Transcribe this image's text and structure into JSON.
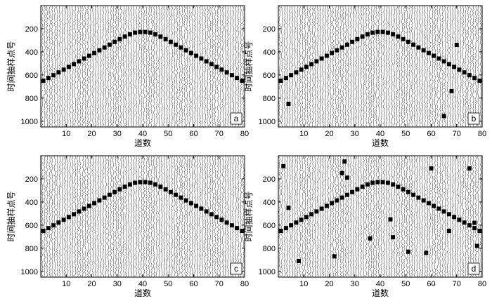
{
  "chart_data": [
    {
      "type": "scatter",
      "panel_label": "a",
      "xlabel": "道数",
      "ylabel": "时间抽样点号",
      "xlim": [
        0,
        80
      ],
      "ylim": [
        1050,
        0
      ],
      "xticks": [
        "10",
        "20",
        "30",
        "40",
        "50",
        "60",
        "70",
        "80"
      ],
      "yticks": [
        "200",
        "400",
        "600",
        "800",
        "1000"
      ],
      "background": "seismic wiggle traces",
      "picks": {
        "x": [
          1,
          3,
          5,
          7,
          9,
          11,
          13,
          15,
          17,
          19,
          21,
          23,
          25,
          27,
          29,
          31,
          33,
          35,
          37,
          39,
          41,
          43,
          45,
          47,
          49,
          51,
          53,
          55,
          57,
          59,
          61,
          63,
          65,
          67,
          69,
          71,
          73,
          75,
          77,
          79
        ],
        "y": [
          650,
          626,
          602,
          578,
          554,
          530,
          506,
          482,
          458,
          434,
          410,
          386,
          362,
          338,
          314,
          290,
          268,
          248,
          234,
          228,
          228,
          234,
          248,
          268,
          290,
          314,
          338,
          362,
          386,
          410,
          434,
          458,
          482,
          506,
          530,
          554,
          578,
          602,
          626,
          650
        ]
      },
      "outliers": {
        "x": [],
        "y": []
      }
    },
    {
      "type": "scatter",
      "panel_label": "b",
      "xlabel": "道数",
      "ylabel": "时间抽样点号",
      "xlim": [
        0,
        80
      ],
      "ylim": [
        1050,
        0
      ],
      "xticks": [
        "10",
        "20",
        "30",
        "40",
        "50",
        "60",
        "70",
        "80"
      ],
      "yticks": [
        "200",
        "400",
        "600",
        "800",
        "1000"
      ],
      "background": "seismic wiggle traces",
      "picks": {
        "x": [
          1,
          3,
          5,
          7,
          9,
          11,
          13,
          15,
          17,
          19,
          21,
          23,
          25,
          27,
          29,
          31,
          33,
          35,
          37,
          39,
          41,
          43,
          45,
          47,
          49,
          51,
          53,
          55,
          57,
          59,
          61,
          63,
          65,
          67,
          69,
          71,
          73,
          75,
          77,
          79
        ],
        "y": [
          650,
          626,
          602,
          578,
          554,
          530,
          506,
          482,
          458,
          434,
          410,
          386,
          362,
          338,
          314,
          290,
          268,
          248,
          234,
          228,
          228,
          234,
          248,
          268,
          290,
          314,
          338,
          362,
          386,
          410,
          434,
          458,
          482,
          506,
          530,
          554,
          578,
          602,
          626,
          650
        ]
      },
      "outliers": {
        "x": [
          4,
          65,
          68,
          70
        ],
        "y": [
          850,
          955,
          740,
          340
        ]
      }
    },
    {
      "type": "scatter",
      "panel_label": "c",
      "xlabel": "道数",
      "ylabel": "时间抽样点号",
      "xlim": [
        0,
        80
      ],
      "ylim": [
        1050,
        0
      ],
      "xticks": [
        "10",
        "20",
        "30",
        "40",
        "50",
        "60",
        "70",
        "80"
      ],
      "yticks": [
        "200",
        "400",
        "600",
        "800",
        "1000"
      ],
      "background": "seismic wiggle traces",
      "picks": {
        "x": [
          1,
          3,
          5,
          7,
          9,
          11,
          13,
          15,
          17,
          19,
          21,
          23,
          25,
          27,
          29,
          31,
          33,
          35,
          37,
          39,
          41,
          43,
          45,
          47,
          49,
          51,
          53,
          55,
          57,
          59,
          61,
          63,
          65,
          67,
          69,
          71,
          73,
          75,
          77,
          79
        ],
        "y": [
          650,
          626,
          602,
          578,
          554,
          530,
          506,
          482,
          458,
          434,
          410,
          386,
          362,
          338,
          314,
          290,
          268,
          248,
          234,
          228,
          228,
          234,
          248,
          268,
          290,
          314,
          338,
          362,
          386,
          410,
          434,
          458,
          482,
          506,
          530,
          554,
          578,
          602,
          626,
          650
        ]
      },
      "outliers": {
        "x": [],
        "y": []
      }
    },
    {
      "type": "scatter",
      "panel_label": "d",
      "xlabel": "道数",
      "ylabel": "时间抽样点号",
      "xlim": [
        0,
        80
      ],
      "ylim": [
        1050,
        0
      ],
      "xticks": [
        "10",
        "20",
        "30",
        "40",
        "50",
        "60",
        "70",
        "80"
      ],
      "yticks": [
        "200",
        "400",
        "600",
        "800",
        "1000"
      ],
      "background": "seismic wiggle traces",
      "picks": {
        "x": [
          1,
          3,
          5,
          7,
          9,
          11,
          13,
          15,
          17,
          19,
          21,
          23,
          25,
          27,
          29,
          31,
          33,
          35,
          37,
          39,
          41,
          43,
          45,
          47,
          49,
          51,
          53,
          55,
          57,
          59,
          61,
          63,
          65,
          67,
          69,
          71,
          73,
          75,
          77,
          79
        ],
        "y": [
          650,
          626,
          602,
          578,
          554,
          530,
          506,
          482,
          458,
          434,
          410,
          386,
          362,
          338,
          314,
          290,
          268,
          248,
          234,
          228,
          228,
          234,
          248,
          268,
          290,
          314,
          338,
          362,
          386,
          410,
          434,
          458,
          482,
          506,
          530,
          554,
          578,
          602,
          626,
          650
        ]
      },
      "outliers": {
        "x": [
          2,
          4,
          8,
          22,
          25,
          26,
          27,
          36,
          44,
          45,
          51,
          58,
          60,
          67,
          75,
          77,
          78
        ],
        "y": [
          90,
          450,
          910,
          870,
          150,
          50,
          190,
          715,
          550,
          705,
          830,
          840,
          110,
          650,
          110,
          580,
          780
        ]
      }
    }
  ]
}
